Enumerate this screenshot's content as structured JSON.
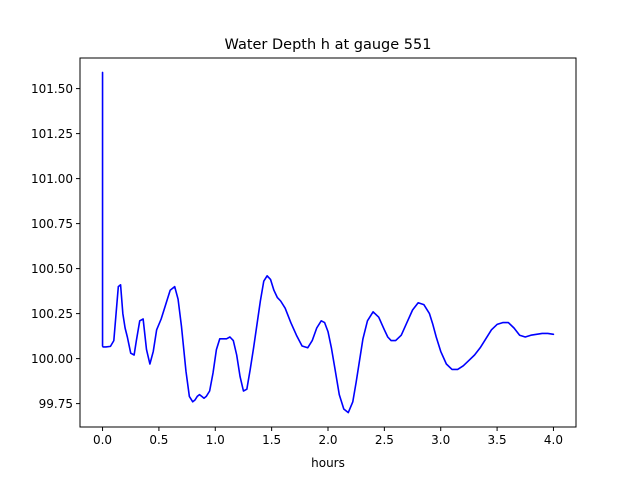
{
  "chart_data": {
    "type": "line",
    "title": "Water Depth h at gauge 551",
    "xlabel": "hours",
    "ylabel": "",
    "xlim": [
      -0.2,
      4.2
    ],
    "ylim": [
      99.62,
      101.67
    ],
    "xticks": [
      0.0,
      0.5,
      1.0,
      1.5,
      2.0,
      2.5,
      3.0,
      3.5,
      4.0
    ],
    "xtick_labels": [
      "0.0",
      "0.5",
      "1.0",
      "1.5",
      "2.0",
      "2.5",
      "3.0",
      "3.5",
      "4.0"
    ],
    "yticks": [
      99.75,
      100.0,
      100.25,
      100.5,
      100.75,
      101.0,
      101.25,
      101.5
    ],
    "ytick_labels": [
      "99.75",
      "100.00",
      "100.25",
      "100.50",
      "100.75",
      "101.00",
      "101.25",
      "101.50"
    ],
    "grid": false,
    "series": [
      {
        "color": "#0000ff",
        "x": [
          0.0,
          0.0,
          0.005,
          0.03,
          0.07,
          0.1,
          0.12,
          0.14,
          0.16,
          0.18,
          0.2,
          0.22,
          0.25,
          0.28,
          0.3,
          0.33,
          0.36,
          0.39,
          0.42,
          0.45,
          0.48,
          0.52,
          0.56,
          0.6,
          0.64,
          0.67,
          0.7,
          0.74,
          0.77,
          0.8,
          0.82,
          0.84,
          0.86,
          0.88,
          0.9,
          0.92,
          0.95,
          0.98,
          1.01,
          1.04,
          1.07,
          1.1,
          1.13,
          1.16,
          1.19,
          1.22,
          1.25,
          1.28,
          1.31,
          1.34,
          1.37,
          1.4,
          1.43,
          1.46,
          1.49,
          1.52,
          1.55,
          1.58,
          1.62,
          1.67,
          1.72,
          1.77,
          1.82,
          1.86,
          1.9,
          1.94,
          1.97,
          2.0,
          2.03,
          2.06,
          2.1,
          2.14,
          2.18,
          2.22,
          2.25,
          2.28,
          2.31,
          2.35,
          2.4,
          2.45,
          2.5,
          2.53,
          2.56,
          2.6,
          2.65,
          2.7,
          2.75,
          2.8,
          2.85,
          2.9,
          2.93,
          2.96,
          3.0,
          3.05,
          3.1,
          3.15,
          3.2,
          3.25,
          3.3,
          3.35,
          3.4,
          3.45,
          3.5,
          3.55,
          3.6,
          3.65,
          3.7,
          3.75,
          3.8,
          3.85,
          3.9,
          3.95,
          4.0
        ],
        "values": [
          101.59,
          100.07,
          100.065,
          100.065,
          100.068,
          100.1,
          100.25,
          100.4,
          100.41,
          100.25,
          100.17,
          100.12,
          100.03,
          100.02,
          100.1,
          100.21,
          100.22,
          100.05,
          99.97,
          100.04,
          100.16,
          100.22,
          100.3,
          100.38,
          100.4,
          100.33,
          100.18,
          99.93,
          99.79,
          99.76,
          99.77,
          99.79,
          99.8,
          99.79,
          99.78,
          99.79,
          99.82,
          99.92,
          100.05,
          100.11,
          100.11,
          100.11,
          100.12,
          100.1,
          100.02,
          99.9,
          99.82,
          99.83,
          99.94,
          100.06,
          100.19,
          100.32,
          100.43,
          100.46,
          100.44,
          100.38,
          100.34,
          100.32,
          100.28,
          100.2,
          100.13,
          100.07,
          100.06,
          100.1,
          100.17,
          100.21,
          100.2,
          100.15,
          100.06,
          99.95,
          99.8,
          99.72,
          99.7,
          99.76,
          99.87,
          99.99,
          100.11,
          100.21,
          100.26,
          100.23,
          100.16,
          100.12,
          100.1,
          100.1,
          100.13,
          100.2,
          100.27,
          100.31,
          100.3,
          100.25,
          100.19,
          100.12,
          100.04,
          99.97,
          99.94,
          99.94,
          99.96,
          99.99,
          100.02,
          100.06,
          100.11,
          100.16,
          100.19,
          100.2,
          100.2,
          100.17,
          100.13,
          100.12,
          100.13,
          100.135,
          100.14,
          100.14,
          100.135
        ]
      }
    ]
  }
}
